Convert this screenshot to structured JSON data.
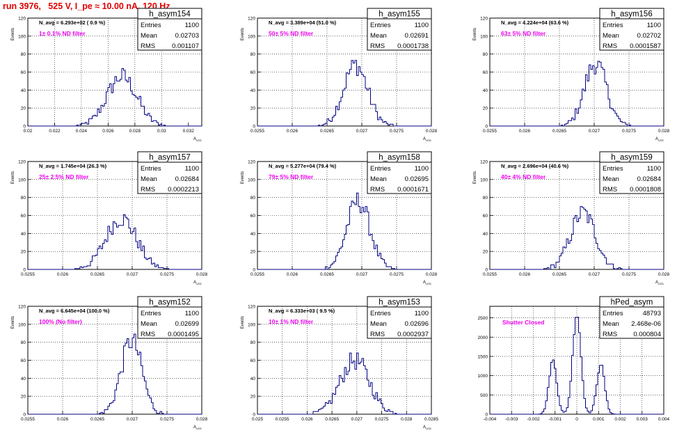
{
  "title": "run 3976,   525 V, I_pe ≈ 10.00 nA, 120 Hz",
  "colors": {
    "title": "#e00000",
    "annotation": "#ee00ee",
    "histogram": "#000080",
    "grid": "#000000"
  },
  "chart_data": [
    {
      "type": "histogram",
      "name": "h_asym154",
      "ylabel": "Events",
      "xlabel": "A_{LED}",
      "stats": {
        "entries": "1100",
        "mean": "0.02703",
        "rms": "0.001107"
      },
      "navg": "N_avg = 6.293e+02 ( 0.9 %)",
      "filter": "1± 0.1% ND filter",
      "xlim": [
        0.02,
        0.033
      ],
      "ylim": [
        0,
        120
      ],
      "xticks": [
        "0.02",
        "0.022",
        "0.024",
        "0.026",
        "0.028",
        "0.03",
        "0.032"
      ],
      "yticks": [
        "0",
        "20",
        "40",
        "60",
        "80",
        "100",
        "120"
      ],
      "mean": 0.02703,
      "sigma": 0.001107,
      "peak": 55,
      "nbins": 100
    },
    {
      "type": "histogram",
      "name": "h_asym155",
      "ylabel": "Events",
      "xlabel": "A_{LED}",
      "stats": {
        "entries": "1100",
        "mean": "0.02691",
        "rms": "0.0001738"
      },
      "navg": "N_avg = 3.389e+04 (51.0 %)",
      "filter": "50± 5% ND filter",
      "xlim": [
        0.0255,
        0.028
      ],
      "ylim": [
        0,
        120
      ],
      "xticks": [
        "0.0255",
        "0.026",
        "0.0265",
        "0.027",
        "0.0275",
        "0.028"
      ],
      "yticks": [
        "0",
        "20",
        "40",
        "60",
        "80",
        "100",
        "120"
      ],
      "mean": 0.02691,
      "sigma": 0.0001738,
      "peak": 68,
      "nbins": 100
    },
    {
      "type": "histogram",
      "name": "h_asym156",
      "ylabel": "Events",
      "xlabel": "A_{LED}",
      "stats": {
        "entries": "1100",
        "mean": "0.02702",
        "rms": "0.0001587"
      },
      "navg": "N_avg = 4.224e+04 (63.6 %)",
      "filter": "63± 5% ND filter",
      "xlim": [
        0.0255,
        0.028
      ],
      "ylim": [
        0,
        120
      ],
      "xticks": [
        "0.0255",
        "0.026",
        "0.0265",
        "0.027",
        "0.0275",
        "0.028"
      ],
      "yticks": [
        "0",
        "20",
        "40",
        "60",
        "80",
        "100",
        "120"
      ],
      "mean": 0.02702,
      "sigma": 0.0001587,
      "peak": 70,
      "nbins": 100
    },
    {
      "type": "histogram",
      "name": "h_asym157",
      "ylabel": "Events",
      "xlabel": "A_{LED}",
      "stats": {
        "entries": "1100",
        "mean": "0.02684",
        "rms": "0.0002213"
      },
      "navg": "N_avg = 1.745e+04 (26.3 %)",
      "filter": "25± 2.5% ND filter",
      "xlim": [
        0.0255,
        0.028
      ],
      "ylim": [
        0,
        120
      ],
      "xticks": [
        "0.0255",
        "0.026",
        "0.0265",
        "0.027",
        "0.0275",
        "0.028"
      ],
      "yticks": [
        "0",
        "20",
        "40",
        "60",
        "80",
        "100",
        "120"
      ],
      "mean": 0.02684,
      "sigma": 0.0002213,
      "peak": 57,
      "nbins": 100
    },
    {
      "type": "histogram",
      "name": "h_asym158",
      "ylabel": "Events",
      "xlabel": "A_{LED}",
      "stats": {
        "entries": "1100",
        "mean": "0.02695",
        "rms": "0.0001671"
      },
      "navg": "N_avg = 5.277e+04 (79.4 %)",
      "filter": "79± 5% ND filter",
      "xlim": [
        0.0255,
        0.028
      ],
      "ylim": [
        0,
        120
      ],
      "xticks": [
        "0.0255",
        "0.026",
        "0.0265",
        "0.027",
        "0.0275",
        "0.028"
      ],
      "yticks": [
        "0",
        "20",
        "40",
        "60",
        "80",
        "100",
        "120"
      ],
      "mean": 0.02695,
      "sigma": 0.0001671,
      "peak": 76,
      "nbins": 100
    },
    {
      "type": "histogram",
      "name": "h_asym159",
      "ylabel": "Events",
      "xlabel": "A_{LED}",
      "stats": {
        "entries": "1100",
        "mean": "0.02684",
        "rms": "0.0001808"
      },
      "navg": "N_avg = 2.696e+04 (40.6 %)",
      "filter": "40± 4% ND filter",
      "xlim": [
        0.0255,
        0.028
      ],
      "ylim": [
        0,
        120
      ],
      "xticks": [
        "0.0255",
        "0.026",
        "0.0265",
        "0.027",
        "0.0275",
        "0.028"
      ],
      "yticks": [
        "0",
        "20",
        "40",
        "60",
        "80",
        "100",
        "120"
      ],
      "mean": 0.02684,
      "sigma": 0.0001808,
      "peak": 63,
      "nbins": 100
    },
    {
      "type": "histogram",
      "name": "h_asym152",
      "ylabel": "Events",
      "xlabel": "A_{LED}",
      "stats": {
        "entries": "1100",
        "mean": "0.02699",
        "rms": "0.0001495"
      },
      "navg": "N_avg = 6.645e+04 (100.0 %)",
      "filter": "100% (No filter)",
      "xlim": [
        0.0255,
        0.028
      ],
      "ylim": [
        0,
        120
      ],
      "xticks": [
        "0.0255",
        "0.026",
        "0.0265",
        "0.027",
        "0.0275",
        "0.028"
      ],
      "yticks": [
        "0",
        "20",
        "40",
        "60",
        "80",
        "100",
        "120"
      ],
      "mean": 0.02699,
      "sigma": 0.0001495,
      "peak": 82,
      "nbins": 100
    },
    {
      "type": "histogram",
      "name": "h_asym153",
      "ylabel": "Events",
      "xlabel": "A_{LED}",
      "stats": {
        "entries": "1100",
        "mean": "0.02696",
        "rms": "0.0002937"
      },
      "navg": "N_avg = 6.333e+03 ( 9.5 %)",
      "filter": "10± 1% ND filter",
      "xlim": [
        0.025,
        0.0285
      ],
      "ylim": [
        0,
        120
      ],
      "xticks": [
        "0.025",
        "0.0255",
        "0.026",
        "0.0265",
        "0.027",
        "0.0275",
        "0.028",
        "0.0285"
      ],
      "yticks": [
        "0",
        "20",
        "40",
        "60",
        "80",
        "100",
        "120"
      ],
      "mean": 0.02696,
      "sigma": 0.0002937,
      "peak": 60,
      "nbins": 100
    },
    {
      "type": "histogram",
      "name": "hPed_asym",
      "ylabel": "",
      "xlabel": "",
      "stats": {
        "entries": "48793",
        "mean": "2.468e-06",
        "rms": "0.000804"
      },
      "navg": "",
      "filter": "Shutter Closed",
      "xlim": [
        -0.004,
        0.004
      ],
      "ylim": [
        0,
        2800
      ],
      "xticks": [
        "-0.004",
        "-0.003",
        "-0.002",
        "-0.001",
        "0",
        "0.001",
        "0.002",
        "0.003",
        "0.004"
      ],
      "yticks": [
        "0",
        "500",
        "1000",
        "1500",
        "2000",
        "2500"
      ],
      "components": [
        {
          "mu": -0.0011,
          "sigma": 0.00018,
          "amp": 1400
        },
        {
          "mu": 0.0,
          "sigma": 0.00019,
          "amp": 2600
        },
        {
          "mu": 0.0011,
          "sigma": 0.00018,
          "amp": 1300
        }
      ],
      "nbins": 100
    }
  ]
}
